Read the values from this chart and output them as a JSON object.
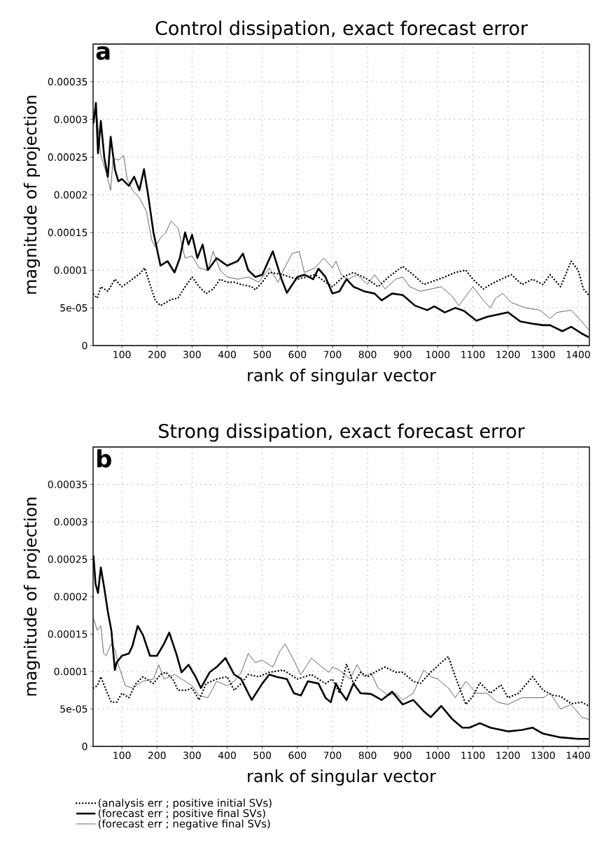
{
  "chart_data": [
    {
      "type": "line",
      "title": "Control dissipation, exact forecast error",
      "xlabel": "rank of singular vector",
      "ylabel": "magnitude of projection",
      "annotations": [
        "a"
      ],
      "xlim": [
        18,
        1432
      ],
      "ylim": [
        0,
        0.0004
      ],
      "xticks": [
        100,
        200,
        300,
        400,
        500,
        600,
        700,
        800,
        900,
        1000,
        1100,
        1200,
        1300,
        1400
      ],
      "yticks": [
        0,
        5e-05,
        0.0001,
        0.00015,
        0.0002,
        0.00025,
        0.0003,
        0.00035
      ],
      "grid": true,
      "marker": "none",
      "series": [
        {
          "color": "#000000",
          "line_style": "dotted",
          "x": [
            19,
            30,
            40,
            60,
            80,
            100,
            130,
            150,
            165,
            180,
            195,
            210,
            240,
            260,
            280,
            300,
            320,
            340,
            360,
            380,
            400,
            420,
            440,
            470,
            480,
            500,
            520,
            550,
            600,
            650,
            700,
            730,
            760,
            800,
            830,
            860,
            900,
            930,
            960,
            990,
            1020,
            1050,
            1080,
            1100,
            1130,
            1150,
            1180,
            1210,
            1240,
            1270,
            1300,
            1320,
            1350,
            1380,
            1400,
            1415,
            1430
          ],
          "values": [
            6.8e-05,
            6.3e-05,
            7.8e-05,
            7.2e-05,
            8.8e-05,
            7.8e-05,
            8.8e-05,
            9.5e-05,
            0.000103,
            8.1e-05,
            6e-05,
            5.3e-05,
            6.1e-05,
            6.3e-05,
            7.8e-05,
            9.1e-05,
            7.8e-05,
            6.9e-05,
            7.5e-05,
            8.8e-05,
            8.4e-05,
            8.4e-05,
            8.1e-05,
            7.8e-05,
            7.4e-05,
            8.4e-05,
            9.7e-05,
            9.5e-05,
            8.8e-05,
            9.4e-05,
            7.8e-05,
            9.1e-05,
            9.7e-05,
            8.8e-05,
            7.8e-05,
            9.1e-05,
            0.000105,
            9.4e-05,
            8.1e-05,
            8.6e-05,
            9.1e-05,
            9.7e-05,
            0.0001,
            8.8e-05,
            7.5e-05,
            8.1e-05,
            8.8e-05,
            9.4e-05,
            8.1e-05,
            8.8e-05,
            8.1e-05,
            9.4e-05,
            7.8e-05,
            0.000112,
            0.0001,
            7.5e-05,
            6.7e-05
          ]
        },
        {
          "color": "#000000",
          "line_style": "solid",
          "x": [
            19,
            26,
            32,
            40,
            50,
            60,
            68,
            80,
            90,
            100,
            120,
            135,
            150,
            163,
            175,
            190,
            200,
            210,
            230,
            250,
            265,
            280,
            290,
            300,
            315,
            330,
            345,
            370,
            400,
            430,
            445,
            460,
            480,
            500,
            530,
            555,
            570,
            600,
            620,
            645,
            660,
            680,
            700,
            720,
            740,
            760,
            790,
            820,
            840,
            870,
            900,
            935,
            970,
            990,
            1020,
            1050,
            1075,
            1110,
            1140,
            1170,
            1200,
            1235,
            1270,
            1300,
            1320,
            1355,
            1380,
            1410,
            1430
          ],
          "values": [
            0.000295,
            0.000322,
            0.000255,
            0.000298,
            0.000249,
            0.000224,
            0.000277,
            0.000234,
            0.000218,
            0.000221,
            0.000212,
            0.000224,
            0.000206,
            0.000234,
            0.000199,
            0.00015,
            0.000128,
            0.000106,
            0.000112,
            9.7e-05,
            0.000116,
            0.00015,
            0.000134,
            0.000147,
            0.000116,
            0.000134,
            0.0001,
            0.000116,
            0.000106,
            0.000112,
            0.000122,
            0.0001,
            9.1e-05,
            9.4e-05,
            0.000125,
            8.8e-05,
            7e-05,
            9.1e-05,
            9.4e-05,
            8.8e-05,
            0.000102,
            9.1e-05,
            6.9e-05,
            7.2e-05,
            8.8e-05,
            7.8e-05,
            7.2e-05,
            6.9e-05,
            6e-05,
            6.9e-05,
            6.7e-05,
            5.3e-05,
            4.7e-05,
            5.2e-05,
            4.4e-05,
            5e-05,
            4.6e-05,
            3.3e-05,
            3.8e-05,
            4.1e-05,
            4.4e-05,
            3.2e-05,
            2.9e-05,
            2.7e-05,
            2.7e-05,
            1.9e-05,
            2.5e-05,
            1.6e-05,
            1.1e-05
          ]
        },
        {
          "color": "#000000",
          "line_style": "solid",
          "x": [
            19,
            26,
            40,
            55,
            68,
            75,
            90,
            105,
            115,
            130,
            150,
            170,
            185,
            195,
            210,
            225,
            240,
            260,
            280,
            300,
            320,
            345,
            360,
            380,
            400,
            430,
            460,
            490,
            520,
            545,
            560,
            585,
            605,
            620,
            650,
            675,
            700,
            710,
            725,
            745,
            770,
            800,
            820,
            850,
            880,
            900,
            920,
            950,
            980,
            1010,
            1040,
            1060,
            1100,
            1130,
            1150,
            1165,
            1185,
            1210,
            1250,
            1290,
            1320,
            1340,
            1380,
            1410,
            1430
          ],
          "values": [
            0.000293,
            0.00032,
            0.000252,
            0.00023,
            0.000206,
            0.000249,
            0.000246,
            0.000252,
            0.000221,
            0.000206,
            0.000196,
            0.000178,
            0.00014,
            0.000131,
            0.000143,
            0.00015,
            0.000165,
            0.000156,
            0.000116,
            0.000119,
            0.000103,
            0.0001,
            0.000125,
            0.0001,
            9.1e-05,
            8.8e-05,
            9.1e-05,
            8.4e-05,
            0.000103,
            8.4e-05,
            0.0001,
            0.000122,
            0.000125,
            9.7e-05,
            0.000103,
            0.000116,
            0.000103,
            0.000112,
            9.4e-05,
            8.8e-05,
            9.4e-05,
            8.1e-05,
            9.4e-05,
            7.5e-05,
            8.8e-05,
            9.1e-05,
            7.8e-05,
            7.2e-05,
            7.5e-05,
            7.8e-05,
            6.6e-05,
            5.3e-05,
            7.8e-05,
            6e-05,
            5e-05,
            6.3e-05,
            6.9e-05,
            5.7e-05,
            5e-05,
            4.7e-05,
            3.6e-05,
            4.4e-05,
            4.7e-05,
            3.2e-05,
            2.1e-05
          ]
        }
      ]
    },
    {
      "type": "line",
      "title": "Strong dissipation, exact forecast error",
      "xlabel": "rank of singular vector",
      "ylabel": "magnitude of projection",
      "annotations": [
        "b"
      ],
      "xlim": [
        18,
        1432
      ],
      "ylim": [
        0,
        0.0004
      ],
      "xticks": [
        100,
        200,
        300,
        400,
        500,
        600,
        700,
        800,
        900,
        1000,
        1100,
        1200,
        1300,
        1400
      ],
      "yticks": [
        0,
        5e-05,
        0.0001,
        0.00015,
        0.0002,
        0.00025,
        0.0003,
        0.00035
      ],
      "grid": true,
      "marker": "none",
      "legend": "bottom left",
      "series": [
        {
          "name": "(analysis err ; positive initial SVs)",
          "color": "#000000",
          "line_style": "dotted",
          "x": [
            19,
            30,
            40,
            55,
            70,
            85,
            100,
            120,
            140,
            160,
            190,
            210,
            225,
            245,
            260,
            285,
            300,
            320,
            340,
            370,
            400,
            420,
            440,
            460,
            490,
            520,
            560,
            600,
            640,
            680,
            700,
            720,
            740,
            760,
            780,
            800,
            820,
            850,
            880,
            900,
            930,
            950,
            980,
            1010,
            1030,
            1050,
            1080,
            1100,
            1120,
            1150,
            1180,
            1200,
            1230,
            1270,
            1300,
            1330,
            1350,
            1380,
            1410,
            1430
          ],
          "values": [
            7.8e-05,
            8.1e-05,
            9.3e-05,
            7.5e-05,
            5.9e-05,
            5.9e-05,
            7.1e-05,
            6.5e-05,
            8.4e-05,
            9.3e-05,
            8.4e-05,
            9.6e-05,
            9.9e-05,
            9e-05,
            7.5e-05,
            7.5e-05,
            7.8e-05,
            6.2e-05,
            8.4e-05,
            9e-05,
            9.3e-05,
            7.5e-05,
            8.4e-05,
            9.6e-05,
            9.3e-05,
            9.9e-05,
            0.000102,
            9e-05,
            9.6e-05,
            8.4e-05,
            9e-05,
            7.1e-05,
            0.00011,
            8.4e-05,
            9.9e-05,
            9.3e-05,
            9.9e-05,
            0.000106,
            9.9e-05,
            9.9e-05,
            8.7e-05,
            8.4e-05,
            9.9e-05,
            0.000112,
            0.00012,
            9.3e-05,
            5.6e-05,
            6.7e-05,
            8.5e-05,
            7.1e-05,
            8.2e-05,
            6.5e-05,
            7.1e-05,
            9.3e-05,
            7.5e-05,
            6.8e-05,
            6.7e-05,
            5.7e-05,
            5.9e-05,
            5.4e-05
          ]
        },
        {
          "name": "(forecast err ; positive final SVs)",
          "color": "#000000",
          "line_style": "solid",
          "x": [
            19,
            25,
            32,
            40,
            50,
            60,
            70,
            80,
            85,
            100,
            120,
            130,
            145,
            160,
            180,
            200,
            220,
            235,
            255,
            270,
            290,
            310,
            325,
            350,
            370,
            395,
            420,
            440,
            460,
            470,
            500,
            520,
            540,
            570,
            590,
            610,
            630,
            660,
            680,
            695,
            710,
            720,
            740,
            760,
            780,
            810,
            840,
            870,
            900,
            930,
            960,
            980,
            1010,
            1040,
            1070,
            1090,
            1120,
            1150,
            1200,
            1240,
            1270,
            1300,
            1350,
            1400,
            1430
          ],
          "values": [
            0.000255,
            0.000217,
            0.000205,
            0.000239,
            0.000211,
            0.00018,
            0.000155,
            0.000102,
            0.000112,
            0.000121,
            0.000124,
            0.000134,
            0.000161,
            0.000149,
            0.000121,
            0.000121,
            0.000137,
            0.000152,
            0.000124,
            9.9e-05,
            0.000109,
            9.3e-05,
            7.8e-05,
            9.9e-05,
            0.000106,
            0.000118,
            9.6e-05,
            9e-05,
            7.1e-05,
            6.2e-05,
            8.4e-05,
            9.6e-05,
            9.3e-05,
            9e-05,
            7.1e-05,
            6.8e-05,
            8.7e-05,
            8.4e-05,
            6.5e-05,
            5.9e-05,
            8.4e-05,
            7.5e-05,
            6.2e-05,
            8.4e-05,
            7.1e-05,
            7e-05,
            6.2e-05,
            7.3e-05,
            5.6e-05,
            6.2e-05,
            4.7e-05,
            3.9e-05,
            5.4e-05,
            3.7e-05,
            2.5e-05,
            2.5e-05,
            3.1e-05,
            2.5e-05,
            2e-05,
            2.2e-05,
            2.5e-05,
            1.7e-05,
            1.2e-05,
            1e-05,
            1e-05
          ]
        },
        {
          "name": "(forecast err ; negative final SVs)",
          "color": "#000000",
          "line_style": "solid",
          "x": [
            19,
            30,
            40,
            48,
            55,
            70,
            80,
            90,
            110,
            130,
            160,
            190,
            205,
            220,
            250,
            280,
            300,
            320,
            345,
            370,
            400,
            420,
            440,
            460,
            480,
            500,
            530,
            550,
            565,
            590,
            610,
            640,
            670,
            690,
            700,
            720,
            750,
            770,
            790,
            810,
            830,
            860,
            880,
            900,
            930,
            960,
            980,
            1000,
            1030,
            1050,
            1080,
            1110,
            1140,
            1170,
            1200,
            1240,
            1270,
            1300,
            1320,
            1350,
            1380,
            1410,
            1430
          ],
          "values": [
            0.000171,
            0.000155,
            0.000161,
            0.000124,
            0.000121,
            0.000137,
            0.00013,
            0.000109,
            8.1e-05,
            7.8e-05,
            8.7e-05,
            9e-05,
            0.000109,
            9e-05,
            9.6e-05,
            8.7e-05,
            8.1e-05,
            6.8e-05,
            6.5e-05,
            8.7e-05,
            8.1e-05,
            8.7e-05,
            9.9e-05,
            0.000124,
            0.000112,
            0.000115,
            0.000106,
            0.000127,
            0.000137,
            0.000115,
            9.6e-05,
            0.000118,
            0.000106,
            9.9e-05,
            0.000106,
            0.000102,
            9e-05,
            0.000109,
            9.3e-05,
            9.8e-05,
            7.8e-05,
            6.8e-05,
            7.1e-05,
            6.2e-05,
            7.1e-05,
            0.000102,
            9.3e-05,
            9e-05,
            7.8e-05,
            6.5e-05,
            8.7e-05,
            7.1e-05,
            7.1e-05,
            5.9e-05,
            5.6e-05,
            6.5e-05,
            6.5e-05,
            6.5e-05,
            7.1e-05,
            5e-05,
            5.6e-05,
            3.9e-05,
            3.6e-05
          ]
        }
      ]
    }
  ]
}
